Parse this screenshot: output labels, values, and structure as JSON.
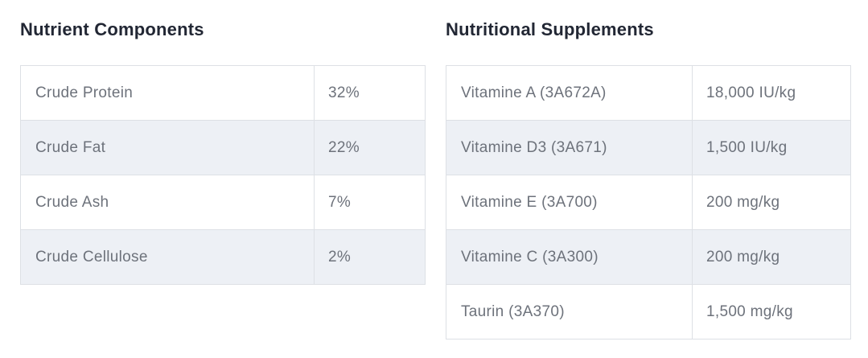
{
  "colors": {
    "heading_text": "#222734",
    "cell_text": "#6d727b",
    "table_border": "#dde0e5",
    "row_bg": "#ffffff",
    "row_alt_bg": "#edf0f5",
    "page_bg": "#ffffff"
  },
  "sections": [
    {
      "title": "Nutrient Components",
      "rows": [
        {
          "label": "Crude Protein",
          "value": "32%"
        },
        {
          "label": "Crude Fat",
          "value": "22%"
        },
        {
          "label": "Crude Ash",
          "value": "7%"
        },
        {
          "label": "Crude Cellulose",
          "value": "2%"
        }
      ]
    },
    {
      "title": "Nutritional Supplements",
      "rows": [
        {
          "label": "Vitamine A (3A672A)",
          "value": "18,000 IU/kg"
        },
        {
          "label": "Vitamine D3 (3A671)",
          "value": "1,500 IU/kg"
        },
        {
          "label": "Vitamine E (3A700)",
          "value": "200 mg/kg"
        },
        {
          "label": "Vitamine C (3A300)",
          "value": "200 mg/kg"
        },
        {
          "label": "Taurin (3A370)",
          "value": "1,500 mg/kg"
        }
      ]
    }
  ]
}
